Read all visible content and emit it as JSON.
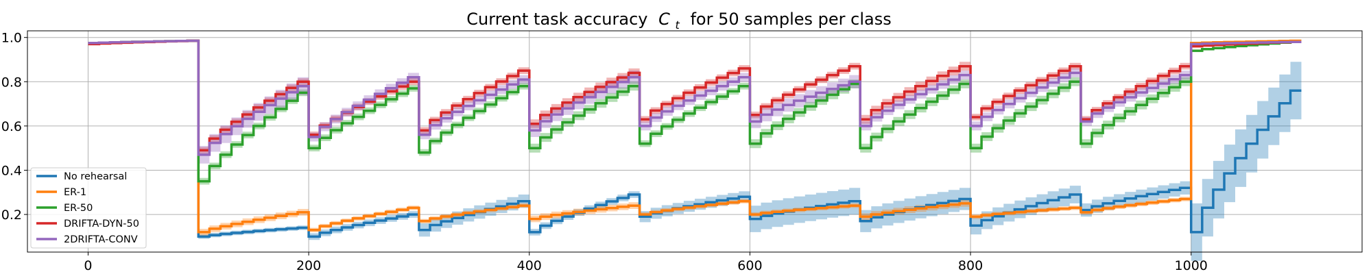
{
  "chart_data": {
    "type": "line",
    "title_main": "Current task accuracy",
    "title_symbol": "C",
    "title_sub": "t",
    "title_rest": "for 50 samples per class",
    "xlabel": "",
    "ylabel": "",
    "xlim": [
      -55,
      1155
    ],
    "ylim": [
      0.03,
      1.03
    ],
    "xticks": [
      0,
      200,
      400,
      600,
      800,
      1000
    ],
    "yticks": [
      0.2,
      0.4,
      0.6,
      0.8,
      1.0
    ],
    "xtick_labels": [
      "0",
      "200",
      "400",
      "600",
      "800",
      "1000"
    ],
    "ytick_labels": [
      "0.2",
      "0.4",
      "0.6",
      "0.8",
      "1.0"
    ],
    "grid": true,
    "legend_position": "lower-left",
    "series": [
      {
        "name": "No rehearsal",
        "color": "#1f77b4",
        "segments": [
          {
            "start": 0,
            "end": 100,
            "first": 0.975,
            "last": 0.985,
            "band": 0.005
          },
          {
            "start": 100,
            "end": 200,
            "first": 0.1,
            "last": 0.14,
            "band": 0.01
          },
          {
            "start": 200,
            "end": 300,
            "first": 0.1,
            "last": 0.2,
            "band": 0.015
          },
          {
            "start": 300,
            "end": 400,
            "first": 0.13,
            "last": 0.26,
            "band": 0.03
          },
          {
            "start": 400,
            "end": 500,
            "first": 0.12,
            "last": 0.29,
            "band": 0.015
          },
          {
            "start": 500,
            "end": 600,
            "first": 0.19,
            "last": 0.28,
            "band": 0.025
          },
          {
            "start": 600,
            "end": 700,
            "first": 0.18,
            "last": 0.26,
            "band": 0.06
          },
          {
            "start": 700,
            "end": 800,
            "first": 0.17,
            "last": 0.27,
            "band": 0.05
          },
          {
            "start": 800,
            "end": 900,
            "first": 0.15,
            "last": 0.29,
            "band": 0.04
          },
          {
            "start": 900,
            "end": 1000,
            "first": 0.22,
            "last": 0.32,
            "band": 0.03
          },
          {
            "start": 1000,
            "end": 1100,
            "first": 0.12,
            "last": 0.76,
            "band": 0.13
          }
        ]
      },
      {
        "name": "ER-1",
        "color": "#ff7f0e",
        "segments": [
          {
            "start": 0,
            "end": 100,
            "first": 0.975,
            "last": 0.985,
            "band": 0.005
          },
          {
            "start": 100,
            "end": 200,
            "first": 0.12,
            "last": 0.21,
            "band": 0.015
          },
          {
            "start": 200,
            "end": 300,
            "first": 0.13,
            "last": 0.23,
            "band": 0.01
          },
          {
            "start": 300,
            "end": 400,
            "first": 0.17,
            "last": 0.24,
            "band": 0.01
          },
          {
            "start": 400,
            "end": 500,
            "first": 0.18,
            "last": 0.24,
            "band": 0.015
          },
          {
            "start": 500,
            "end": 600,
            "first": 0.2,
            "last": 0.26,
            "band": 0.01
          },
          {
            "start": 600,
            "end": 700,
            "first": 0.2,
            "last": 0.24,
            "band": 0.01
          },
          {
            "start": 700,
            "end": 800,
            "first": 0.19,
            "last": 0.25,
            "band": 0.015
          },
          {
            "start": 800,
            "end": 900,
            "first": 0.19,
            "last": 0.23,
            "band": 0.01
          },
          {
            "start": 900,
            "end": 1000,
            "first": 0.21,
            "last": 0.27,
            "band": 0.01
          },
          {
            "start": 1000,
            "end": 1100,
            "first": 0.975,
            "last": 0.985,
            "band": 0.005
          }
        ]
      },
      {
        "name": "ER-50",
        "color": "#2ca02c",
        "segments": [
          {
            "start": 0,
            "end": 100,
            "first": 0.975,
            "last": 0.985,
            "band": 0.005
          },
          {
            "start": 100,
            "end": 200,
            "first": 0.35,
            "last": 0.75,
            "band": 0.015
          },
          {
            "start": 200,
            "end": 300,
            "first": 0.5,
            "last": 0.77,
            "band": 0.015
          },
          {
            "start": 300,
            "end": 400,
            "first": 0.48,
            "last": 0.78,
            "band": 0.015
          },
          {
            "start": 400,
            "end": 500,
            "first": 0.5,
            "last": 0.78,
            "band": 0.02
          },
          {
            "start": 500,
            "end": 600,
            "first": 0.52,
            "last": 0.78,
            "band": 0.015
          },
          {
            "start": 600,
            "end": 700,
            "first": 0.52,
            "last": 0.79,
            "band": 0.02
          },
          {
            "start": 700,
            "end": 800,
            "first": 0.5,
            "last": 0.79,
            "band": 0.02
          },
          {
            "start": 800,
            "end": 900,
            "first": 0.5,
            "last": 0.8,
            "band": 0.02
          },
          {
            "start": 900,
            "end": 1000,
            "first": 0.52,
            "last": 0.8,
            "band": 0.02
          },
          {
            "start": 1000,
            "end": 1100,
            "first": 0.94,
            "last": 0.98,
            "band": 0.005
          }
        ]
      },
      {
        "name": "DRIFTA-DYN-50",
        "color": "#d62728",
        "segments": [
          {
            "start": 0,
            "end": 100,
            "first": 0.97,
            "last": 0.985,
            "band": 0.005
          },
          {
            "start": 100,
            "end": 200,
            "first": 0.49,
            "last": 0.8,
            "band": 0.015
          },
          {
            "start": 200,
            "end": 300,
            "first": 0.56,
            "last": 0.8,
            "band": 0.015
          },
          {
            "start": 300,
            "end": 400,
            "first": 0.58,
            "last": 0.85,
            "band": 0.015
          },
          {
            "start": 400,
            "end": 500,
            "first": 0.61,
            "last": 0.84,
            "band": 0.02
          },
          {
            "start": 500,
            "end": 600,
            "first": 0.63,
            "last": 0.86,
            "band": 0.015
          },
          {
            "start": 600,
            "end": 700,
            "first": 0.65,
            "last": 0.87,
            "band": 0.015
          },
          {
            "start": 700,
            "end": 800,
            "first": 0.63,
            "last": 0.87,
            "band": 0.02
          },
          {
            "start": 800,
            "end": 900,
            "first": 0.64,
            "last": 0.87,
            "band": 0.015
          },
          {
            "start": 900,
            "end": 1000,
            "first": 0.63,
            "last": 0.87,
            "band": 0.015
          },
          {
            "start": 1000,
            "end": 1100,
            "first": 0.96,
            "last": 0.98,
            "band": 0.005
          }
        ]
      },
      {
        "name": "2DRIFTA-CONV",
        "color": "#9467bd",
        "segments": [
          {
            "start": 0,
            "end": 100,
            "first": 0.975,
            "last": 0.985,
            "band": 0.005
          },
          {
            "start": 100,
            "end": 200,
            "first": 0.47,
            "last": 0.78,
            "band": 0.04
          },
          {
            "start": 200,
            "end": 300,
            "first": 0.55,
            "last": 0.82,
            "band": 0.02
          },
          {
            "start": 300,
            "end": 400,
            "first": 0.56,
            "last": 0.81,
            "band": 0.02
          },
          {
            "start": 400,
            "end": 500,
            "first": 0.58,
            "last": 0.82,
            "band": 0.03
          },
          {
            "start": 500,
            "end": 600,
            "first": 0.6,
            "last": 0.82,
            "band": 0.02
          },
          {
            "start": 600,
            "end": 700,
            "first": 0.62,
            "last": 0.8,
            "band": 0.03
          },
          {
            "start": 700,
            "end": 800,
            "first": 0.6,
            "last": 0.83,
            "band": 0.02
          },
          {
            "start": 800,
            "end": 900,
            "first": 0.6,
            "last": 0.84,
            "band": 0.02
          },
          {
            "start": 900,
            "end": 1000,
            "first": 0.62,
            "last": 0.83,
            "band": 0.02
          },
          {
            "start": 1000,
            "end": 1100,
            "first": 0.97,
            "last": 0.98,
            "band": 0.005
          }
        ]
      }
    ]
  }
}
